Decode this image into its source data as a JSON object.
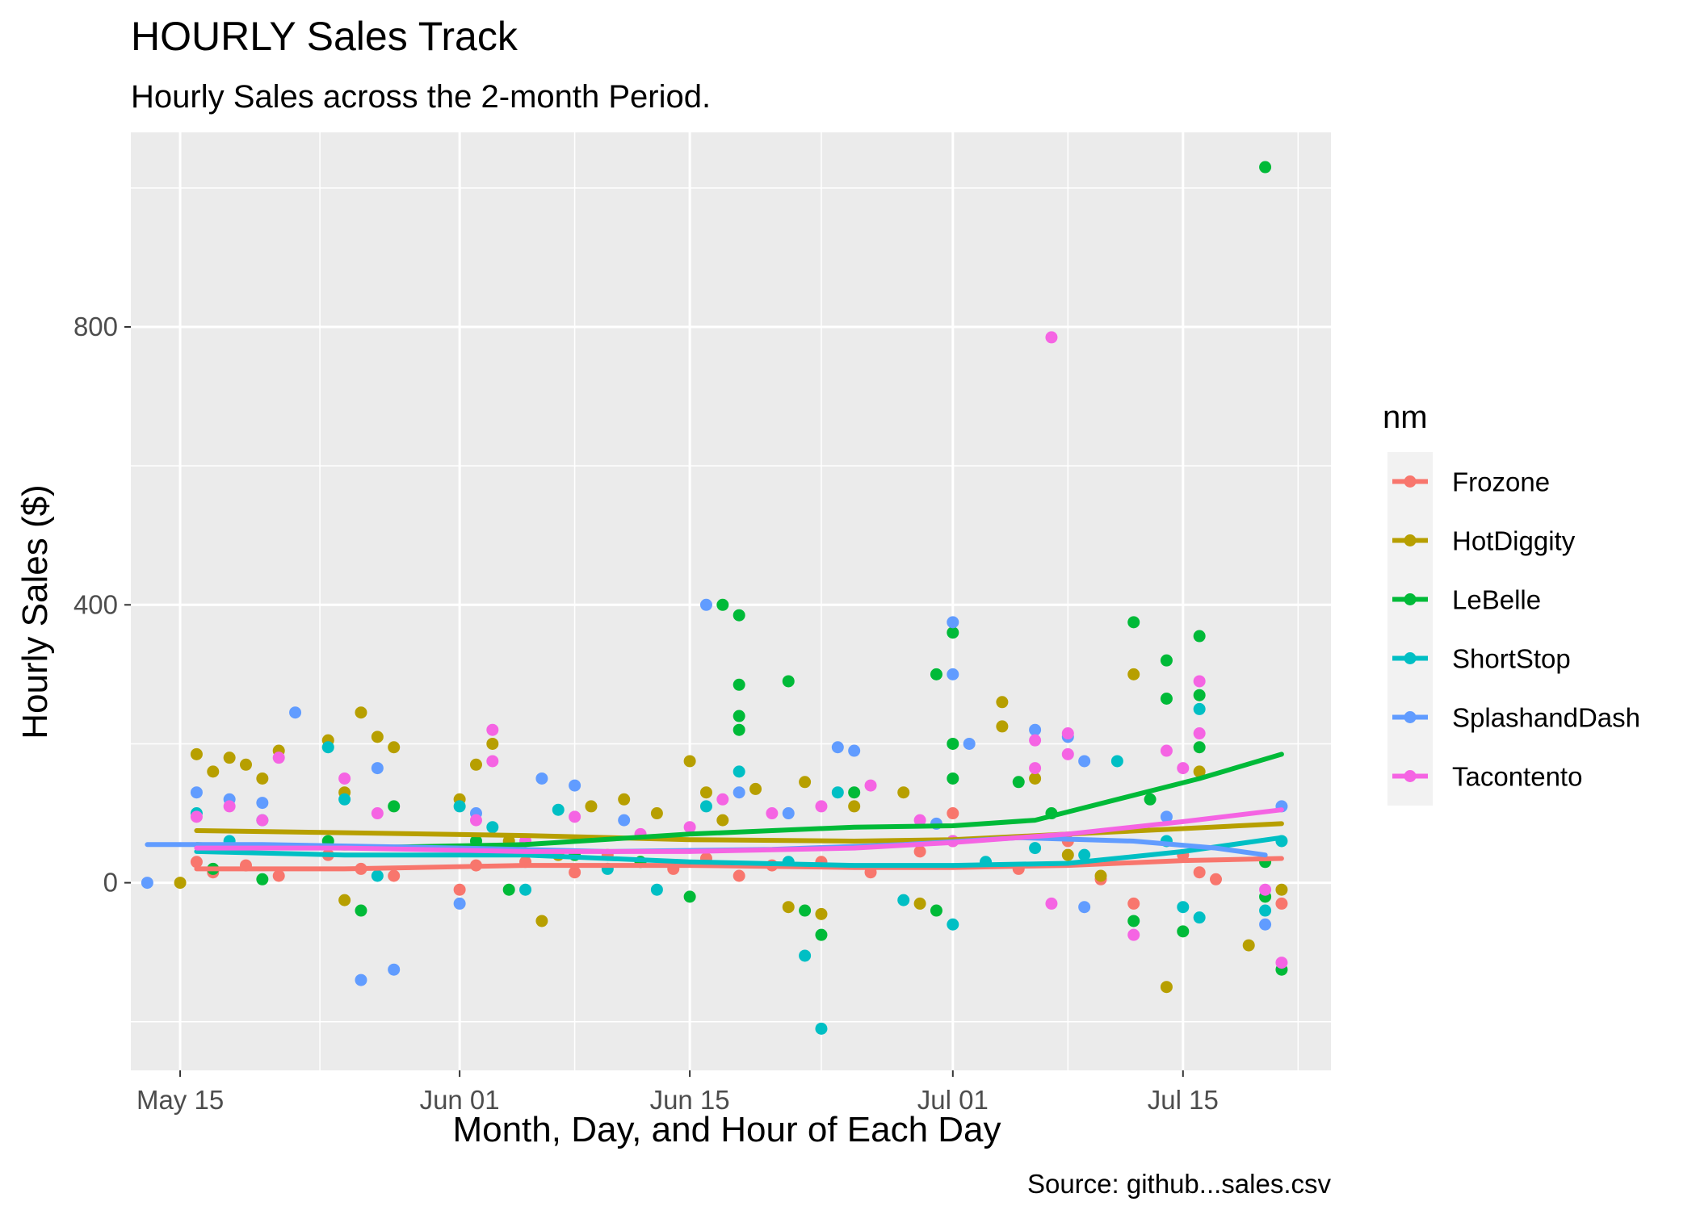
{
  "chart_data": {
    "type": "scatter",
    "title": "HOURLY Sales Track",
    "subtitle": "Hourly Sales across the 2-month Period.",
    "xlabel": "Month, Day, and Hour of Each Day",
    "ylabel": "Hourly Sales ($)",
    "caption": "Source: github...sales.csv",
    "x_scale": "date",
    "xlim": [
      "2024-05-12",
      "2024-07-24"
    ],
    "ylim": [
      -270,
      1080
    ],
    "x_ticks": [
      {
        "date": "2024-05-15",
        "label": "May 15"
      },
      {
        "date": "2024-06-01",
        "label": "Jun 01"
      },
      {
        "date": "2024-06-15",
        "label": "Jun 15"
      },
      {
        "date": "2024-07-01",
        "label": "Jul 01"
      },
      {
        "date": "2024-07-15",
        "label": "Jul 15"
      }
    ],
    "y_ticks": [
      0,
      400,
      800
    ],
    "grid": true,
    "panel_background": "#ebebeb",
    "legend": {
      "title": "nm",
      "position": "right"
    },
    "series": [
      {
        "name": "Frozone",
        "color": "#F8766D",
        "points": [
          [
            "2024-05-16",
            30
          ],
          [
            "2024-05-17",
            15
          ],
          [
            "2024-05-19",
            25
          ],
          [
            "2024-05-21",
            10
          ],
          [
            "2024-05-24",
            40
          ],
          [
            "2024-05-26",
            20
          ],
          [
            "2024-05-28",
            10
          ],
          [
            "2024-06-01",
            -10
          ],
          [
            "2024-06-02",
            25
          ],
          [
            "2024-06-05",
            30
          ],
          [
            "2024-06-08",
            15
          ],
          [
            "2024-06-10",
            40
          ],
          [
            "2024-06-14",
            20
          ],
          [
            "2024-06-16",
            35
          ],
          [
            "2024-06-18",
            10
          ],
          [
            "2024-06-20",
            25
          ],
          [
            "2024-06-23",
            30
          ],
          [
            "2024-06-26",
            15
          ],
          [
            "2024-06-29",
            45
          ],
          [
            "2024-07-01",
            100
          ],
          [
            "2024-07-05",
            20
          ],
          [
            "2024-07-08",
            60
          ],
          [
            "2024-07-10",
            5
          ],
          [
            "2024-07-12",
            -30
          ],
          [
            "2024-07-15",
            40
          ],
          [
            "2024-07-16",
            15
          ],
          [
            "2024-07-17",
            5
          ],
          [
            "2024-07-21",
            -30
          ]
        ],
        "trend": [
          [
            "2024-05-16",
            20
          ],
          [
            "2024-05-25",
            20
          ],
          [
            "2024-06-05",
            25
          ],
          [
            "2024-06-15",
            25
          ],
          [
            "2024-06-25",
            22
          ],
          [
            "2024-07-01",
            22
          ],
          [
            "2024-07-08",
            25
          ],
          [
            "2024-07-15",
            32
          ],
          [
            "2024-07-21",
            35
          ]
        ]
      },
      {
        "name": "HotDiggity",
        "color": "#B79F00",
        "points": [
          [
            "2024-05-15",
            0
          ],
          [
            "2024-05-16",
            185
          ],
          [
            "2024-05-17",
            160
          ],
          [
            "2024-05-18",
            180
          ],
          [
            "2024-05-19",
            170
          ],
          [
            "2024-05-20",
            150
          ],
          [
            "2024-05-21",
            190
          ],
          [
            "2024-05-24",
            205
          ],
          [
            "2024-05-25",
            130
          ],
          [
            "2024-05-26",
            245
          ],
          [
            "2024-05-27",
            210
          ],
          [
            "2024-05-28",
            195
          ],
          [
            "2024-05-25",
            -25
          ],
          [
            "2024-06-01",
            120
          ],
          [
            "2024-06-02",
            170
          ],
          [
            "2024-06-03",
            200
          ],
          [
            "2024-06-04",
            60
          ],
          [
            "2024-06-06",
            -55
          ],
          [
            "2024-06-07",
            40
          ],
          [
            "2024-06-09",
            110
          ],
          [
            "2024-06-11",
            120
          ],
          [
            "2024-06-13",
            100
          ],
          [
            "2024-06-15",
            175
          ],
          [
            "2024-06-16",
            130
          ],
          [
            "2024-06-17",
            90
          ],
          [
            "2024-06-19",
            135
          ],
          [
            "2024-06-21",
            -35
          ],
          [
            "2024-06-22",
            145
          ],
          [
            "2024-06-23",
            -45
          ],
          [
            "2024-06-25",
            110
          ],
          [
            "2024-06-28",
            130
          ],
          [
            "2024-06-29",
            -30
          ],
          [
            "2024-07-01",
            60
          ],
          [
            "2024-07-04",
            260
          ],
          [
            "2024-07-04",
            225
          ],
          [
            "2024-07-06",
            150
          ],
          [
            "2024-07-08",
            40
          ],
          [
            "2024-07-10",
            10
          ],
          [
            "2024-07-12",
            300
          ],
          [
            "2024-07-14",
            -150
          ],
          [
            "2024-07-16",
            160
          ],
          [
            "2024-07-19",
            -90
          ],
          [
            "2024-07-21",
            -10
          ]
        ],
        "trend": [
          [
            "2024-05-16",
            75
          ],
          [
            "2024-05-25",
            72
          ],
          [
            "2024-06-05",
            68
          ],
          [
            "2024-06-15",
            62
          ],
          [
            "2024-06-25",
            60
          ],
          [
            "2024-07-01",
            62
          ],
          [
            "2024-07-08",
            70
          ],
          [
            "2024-07-15",
            78
          ],
          [
            "2024-07-21",
            85
          ]
        ]
      },
      {
        "name": "LeBelle",
        "color": "#00BA38",
        "points": [
          [
            "2024-05-17",
            20
          ],
          [
            "2024-05-20",
            5
          ],
          [
            "2024-05-24",
            60
          ],
          [
            "2024-05-26",
            -40
          ],
          [
            "2024-05-28",
            110
          ],
          [
            "2024-06-02",
            60
          ],
          [
            "2024-06-04",
            -10
          ],
          [
            "2024-06-08",
            40
          ],
          [
            "2024-06-12",
            30
          ],
          [
            "2024-06-15",
            -20
          ],
          [
            "2024-06-17",
            400
          ],
          [
            "2024-06-18",
            385
          ],
          [
            "2024-06-18",
            285
          ],
          [
            "2024-06-18",
            240
          ],
          [
            "2024-06-18",
            220
          ],
          [
            "2024-06-21",
            290
          ],
          [
            "2024-06-22",
            -40
          ],
          [
            "2024-06-23",
            -75
          ],
          [
            "2024-06-25",
            130
          ],
          [
            "2024-06-30",
            300
          ],
          [
            "2024-06-30",
            -40
          ],
          [
            "2024-07-01",
            360
          ],
          [
            "2024-07-01",
            200
          ],
          [
            "2024-07-01",
            150
          ],
          [
            "2024-07-05",
            145
          ],
          [
            "2024-07-07",
            100
          ],
          [
            "2024-07-12",
            375
          ],
          [
            "2024-07-12",
            -55
          ],
          [
            "2024-07-13",
            120
          ],
          [
            "2024-07-14",
            320
          ],
          [
            "2024-07-14",
            265
          ],
          [
            "2024-07-15",
            -70
          ],
          [
            "2024-07-16",
            355
          ],
          [
            "2024-07-16",
            270
          ],
          [
            "2024-07-16",
            195
          ],
          [
            "2024-07-20",
            1030
          ],
          [
            "2024-07-20",
            30
          ],
          [
            "2024-07-20",
            -20
          ],
          [
            "2024-07-21",
            -125
          ]
        ],
        "trend": [
          [
            "2024-05-16",
            55
          ],
          [
            "2024-05-25",
            50
          ],
          [
            "2024-06-05",
            55
          ],
          [
            "2024-06-15",
            70
          ],
          [
            "2024-06-25",
            80
          ],
          [
            "2024-07-01",
            82
          ],
          [
            "2024-07-06",
            90
          ],
          [
            "2024-07-11",
            120
          ],
          [
            "2024-07-16",
            150
          ],
          [
            "2024-07-21",
            185
          ]
        ]
      },
      {
        "name": "ShortStop",
        "color": "#00BFC4",
        "points": [
          [
            "2024-05-16",
            100
          ],
          [
            "2024-05-18",
            60
          ],
          [
            "2024-05-20",
            90
          ],
          [
            "2024-05-24",
            195
          ],
          [
            "2024-05-25",
            120
          ],
          [
            "2024-05-27",
            10
          ],
          [
            "2024-06-01",
            110
          ],
          [
            "2024-06-03",
            80
          ],
          [
            "2024-06-05",
            -10
          ],
          [
            "2024-06-07",
            105
          ],
          [
            "2024-06-10",
            20
          ],
          [
            "2024-06-13",
            -10
          ],
          [
            "2024-06-16",
            110
          ],
          [
            "2024-06-18",
            160
          ],
          [
            "2024-06-21",
            30
          ],
          [
            "2024-06-22",
            -105
          ],
          [
            "2024-06-23",
            -210
          ],
          [
            "2024-06-24",
            130
          ],
          [
            "2024-06-28",
            -25
          ],
          [
            "2024-07-01",
            -60
          ],
          [
            "2024-07-03",
            30
          ],
          [
            "2024-07-06",
            50
          ],
          [
            "2024-07-09",
            40
          ],
          [
            "2024-07-11",
            175
          ],
          [
            "2024-07-14",
            60
          ],
          [
            "2024-07-15",
            -35
          ],
          [
            "2024-07-16",
            250
          ],
          [
            "2024-07-16",
            -50
          ],
          [
            "2024-07-20",
            -40
          ],
          [
            "2024-07-21",
            60
          ]
        ],
        "trend": [
          [
            "2024-05-16",
            45
          ],
          [
            "2024-05-25",
            40
          ],
          [
            "2024-06-05",
            40
          ],
          [
            "2024-06-15",
            30
          ],
          [
            "2024-06-25",
            25
          ],
          [
            "2024-07-01",
            25
          ],
          [
            "2024-07-08",
            28
          ],
          [
            "2024-07-15",
            45
          ],
          [
            "2024-07-21",
            65
          ]
        ]
      },
      {
        "name": "SplashandDash",
        "color": "#619CFF",
        "points": [
          [
            "2024-05-13",
            0
          ],
          [
            "2024-05-16",
            130
          ],
          [
            "2024-05-18",
            120
          ],
          [
            "2024-05-20",
            115
          ],
          [
            "2024-05-22",
            245
          ],
          [
            "2024-05-26",
            -140
          ],
          [
            "2024-05-27",
            165
          ],
          [
            "2024-05-28",
            -125
          ],
          [
            "2024-06-01",
            -30
          ],
          [
            "2024-06-02",
            100
          ],
          [
            "2024-06-06",
            150
          ],
          [
            "2024-06-08",
            140
          ],
          [
            "2024-06-11",
            90
          ],
          [
            "2024-06-16",
            400
          ],
          [
            "2024-06-18",
            130
          ],
          [
            "2024-06-21",
            100
          ],
          [
            "2024-06-24",
            195
          ],
          [
            "2024-06-25",
            190
          ],
          [
            "2024-06-30",
            85
          ],
          [
            "2024-07-01",
            375
          ],
          [
            "2024-07-01",
            300
          ],
          [
            "2024-07-02",
            200
          ],
          [
            "2024-07-06",
            220
          ],
          [
            "2024-07-08",
            210
          ],
          [
            "2024-07-09",
            175
          ],
          [
            "2024-07-09",
            -35
          ],
          [
            "2024-07-14",
            95
          ],
          [
            "2024-07-20",
            -60
          ],
          [
            "2024-07-21",
            110
          ]
        ],
        "trend": [
          [
            "2024-05-13",
            55
          ],
          [
            "2024-05-20",
            55
          ],
          [
            "2024-06-01",
            50
          ],
          [
            "2024-06-10",
            45
          ],
          [
            "2024-06-20",
            48
          ],
          [
            "2024-06-28",
            55
          ],
          [
            "2024-07-05",
            65
          ],
          [
            "2024-07-12",
            60
          ],
          [
            "2024-07-17",
            50
          ],
          [
            "2024-07-20",
            40
          ]
        ]
      },
      {
        "name": "Tacontento",
        "color": "#F564E3",
        "points": [
          [
            "2024-05-16",
            95
          ],
          [
            "2024-05-18",
            110
          ],
          [
            "2024-05-20",
            90
          ],
          [
            "2024-05-21",
            180
          ],
          [
            "2024-05-25",
            150
          ],
          [
            "2024-05-27",
            100
          ],
          [
            "2024-06-02",
            90
          ],
          [
            "2024-06-03",
            220
          ],
          [
            "2024-06-03",
            175
          ],
          [
            "2024-06-05",
            60
          ],
          [
            "2024-06-08",
            95
          ],
          [
            "2024-06-12",
            70
          ],
          [
            "2024-06-15",
            80
          ],
          [
            "2024-06-17",
            120
          ],
          [
            "2024-06-20",
            100
          ],
          [
            "2024-06-23",
            110
          ],
          [
            "2024-06-26",
            140
          ],
          [
            "2024-06-29",
            90
          ],
          [
            "2024-07-01",
            60
          ],
          [
            "2024-07-06",
            205
          ],
          [
            "2024-07-06",
            165
          ],
          [
            "2024-07-07",
            785
          ],
          [
            "2024-07-08",
            215
          ],
          [
            "2024-07-08",
            185
          ],
          [
            "2024-07-07",
            -30
          ],
          [
            "2024-07-12",
            -75
          ],
          [
            "2024-07-14",
            190
          ],
          [
            "2024-07-15",
            165
          ],
          [
            "2024-07-16",
            290
          ],
          [
            "2024-07-16",
            215
          ],
          [
            "2024-07-20",
            -10
          ],
          [
            "2024-07-21",
            -115
          ]
        ],
        "trend": [
          [
            "2024-05-16",
            50
          ],
          [
            "2024-05-25",
            50
          ],
          [
            "2024-06-05",
            45
          ],
          [
            "2024-06-15",
            45
          ],
          [
            "2024-06-25",
            50
          ],
          [
            "2024-07-01",
            58
          ],
          [
            "2024-07-08",
            70
          ],
          [
            "2024-07-15",
            88
          ],
          [
            "2024-07-21",
            105
          ]
        ]
      }
    ]
  }
}
